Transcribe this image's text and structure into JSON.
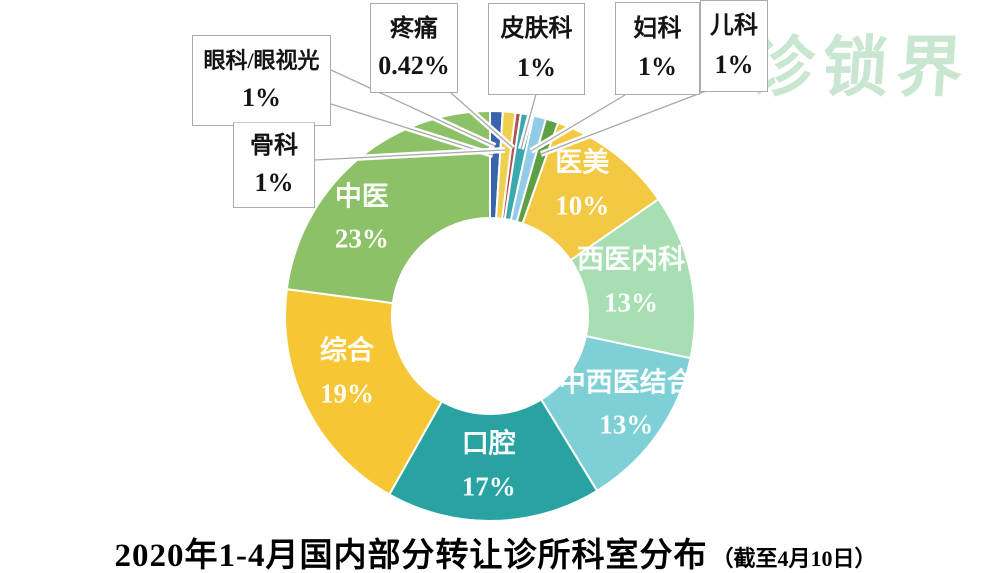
{
  "title": {
    "text": "2020年1-4月国内部分转让诊所科室分布",
    "suffix": "（截至4月10日）"
  },
  "watermark": {
    "text": "诊锁界",
    "color": "#c9e6d0"
  },
  "chart_data": {
    "type": "pie",
    "subtype": "donut",
    "title": "2020年1-4月国内部分转让诊所科室分布（截至4月10日）",
    "unit": "percent",
    "start_angle_deg": 0,
    "direction": "clockwise",
    "legend_position": "none",
    "label_style": "callout-for-small-slices, on-slice-for-large",
    "slices": [
      {
        "label": "眼科/眼视光",
        "value_pct": 1,
        "display": "1%",
        "color": "#3a63ae",
        "callout": true
      },
      {
        "label": "骨科",
        "value_pct": 1,
        "display": "1%",
        "color": "#edd04f",
        "callout": true
      },
      {
        "label": "疼痛",
        "value_pct": 0.42,
        "display": "0.42%",
        "color": "#b0524e",
        "callout": true
      },
      {
        "label": "皮肤科",
        "value_pct": 1,
        "display": "1%",
        "color": "#3aa9af",
        "callout": true
      },
      {
        "label": "妇科",
        "value_pct": 1,
        "display": "1%",
        "color": "#92cbe8",
        "callout": true
      },
      {
        "label": "儿科",
        "value_pct": 1,
        "display": "1%",
        "color": "#5e9f43",
        "callout": true
      },
      {
        "label": "医美",
        "value_pct": 10,
        "display": "10%",
        "color": "#f3c842",
        "callout": false
      },
      {
        "label": "西医内科",
        "value_pct": 13,
        "display": "13%",
        "color": "#a7dfb3",
        "callout": false
      },
      {
        "label": "中西医结合",
        "value_pct": 13,
        "display": "13%",
        "color": "#7ecfd6",
        "callout": false
      },
      {
        "label": "口腔",
        "value_pct": 17,
        "display": "17%",
        "color": "#29a2a2",
        "callout": false
      },
      {
        "label": "综合",
        "value_pct": 19,
        "display": "19%",
        "color": "#f7c634",
        "callout": false
      },
      {
        "label": "中医",
        "value_pct": 23,
        "display": "23%",
        "color": "#8dc167",
        "callout": false
      }
    ]
  }
}
